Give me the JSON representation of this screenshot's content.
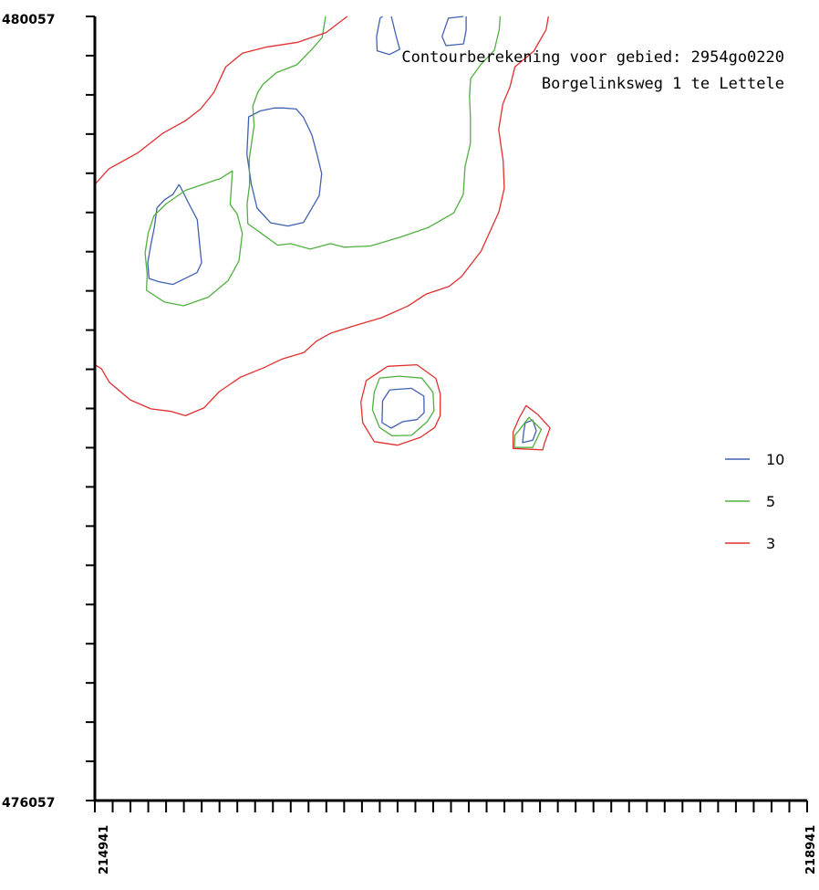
{
  "chart_data": {
    "type": "contour",
    "title": "",
    "subtitle": [
      "Contourberekening voor gebied: 2954go0220",
      "Borgelinksweg 1 te Lettele"
    ],
    "xlabel": "",
    "ylabel": "",
    "xlim": [
      214941,
      218941
    ],
    "ylim": [
      476057,
      480057
    ],
    "x_tick_labels": [
      "214941",
      "218941"
    ],
    "y_tick_labels": [
      "480057",
      "476057"
    ],
    "grid": false,
    "legend_position": "right",
    "levels": [
      {
        "name": "10",
        "color": "#4060b0"
      },
      {
        "name": "5",
        "color": "#50b040"
      },
      {
        "name": "3",
        "color": "#e03030"
      }
    ],
    "series": [
      {
        "name": "10",
        "color": "#4060b0",
        "lines": [
          [
            [
              217011,
              480057
            ],
            [
              216926,
              480048
            ],
            [
              216891,
              479954
            ],
            [
              216913,
              479908
            ],
            [
              217011,
              479917
            ],
            [
              217026,
              479987
            ],
            [
              217026,
              480057
            ]
          ],
          [
            [
              216557,
              480057
            ],
            [
              216543,
              480048
            ],
            [
              216523,
              479955
            ],
            [
              216526,
              479882
            ],
            [
              216596,
              479863
            ],
            [
              216653,
              479890
            ],
            [
              216633,
              479955
            ],
            [
              216606,
              480057
            ]
          ],
          [
            [
              216000,
              479590
            ],
            [
              216072,
              479585
            ],
            [
              216113,
              479542
            ],
            [
              216160,
              479452
            ],
            [
              216189,
              479352
            ],
            [
              216215,
              479255
            ],
            [
              216201,
              479143
            ],
            [
              216113,
              479006
            ],
            [
              216025,
              478988
            ],
            [
              215928,
              479004
            ],
            [
              215852,
              479079
            ],
            [
              215820,
              479200
            ],
            [
              215795,
              479355
            ],
            [
              215805,
              479545
            ],
            [
              215870,
              479575
            ],
            [
              215950,
              479590
            ],
            [
              216000,
              479590
            ]
          ],
          [
            [
              215414,
              479200
            ],
            [
              215380,
              479150
            ],
            [
              215330,
              479120
            ],
            [
              215290,
              479080
            ],
            [
              215275,
              478980
            ],
            [
              215255,
              478890
            ],
            [
              215238,
              478800
            ],
            [
              215245,
              478720
            ],
            [
              215300,
              478704
            ],
            [
              215380,
              478690
            ],
            [
              215514,
              478750
            ],
            [
              215540,
              478800
            ],
            [
              215529,
              478900
            ],
            [
              215516,
              479020
            ],
            [
              215470,
              479100
            ],
            [
              215414,
              479200
            ]
          ],
          [
            [
              216597,
              478152
            ],
            [
              216720,
              478160
            ],
            [
              216789,
              478120
            ],
            [
              216790,
              478035
            ],
            [
              216750,
              478000
            ],
            [
              216670,
              477990
            ],
            [
              216605,
              477957
            ],
            [
              216554,
              477985
            ],
            [
              216557,
              478096
            ],
            [
              216597,
              478152
            ]
          ],
          [
            [
              217358,
              477983
            ],
            [
              217400,
              477998
            ],
            [
              217420,
              477944
            ],
            [
              217400,
              477895
            ],
            [
              217343,
              477883
            ],
            [
              217349,
              477937
            ],
            [
              217358,
              477983
            ]
          ]
        ]
      },
      {
        "name": "5",
        "color": "#50b040",
        "lines": [
          [
            [
              217217,
              480057
            ],
            [
              217212,
              479990
            ],
            [
              217185,
              479885
            ],
            [
              217107,
              479810
            ],
            [
              217051,
              479740
            ],
            [
              217045,
              479650
            ],
            [
              217050,
              479540
            ],
            [
              217050,
              479410
            ],
            [
              217020,
              479290
            ],
            [
              217010,
              479150
            ],
            [
              216957,
              479055
            ],
            [
              216813,
              478980
            ],
            [
              216657,
              478931
            ],
            [
              216488,
              478886
            ],
            [
              216340,
              478880
            ],
            [
              216264,
              478898
            ],
            [
              216150,
              478870
            ],
            [
              216040,
              478898
            ],
            [
              215968,
              478890
            ],
            [
              215869,
              478955
            ],
            [
              215800,
              479000
            ],
            [
              215796,
              479100
            ],
            [
              215810,
              479200
            ],
            [
              215808,
              479330
            ],
            [
              215835,
              479500
            ],
            [
              215828,
              479600
            ],
            [
              215856,
              479670
            ],
            [
              215885,
              479710
            ],
            [
              215960,
              479770
            ],
            [
              216075,
              479810
            ],
            [
              216160,
              479890
            ],
            [
              216218,
              479950
            ],
            [
              216237,
              480057
            ]
          ],
          [
            [
              215714,
              479270
            ],
            [
              215650,
              479232
            ],
            [
              215557,
              479203
            ],
            [
              215450,
              479170
            ],
            [
              215340,
              479100
            ],
            [
              215273,
              479040
            ],
            [
              215240,
              478950
            ],
            [
              215223,
              478850
            ],
            [
              215235,
              478740
            ],
            [
              215231,
              478660
            ],
            [
              215330,
              478601
            ],
            [
              215440,
              478581
            ],
            [
              215578,
              478625
            ],
            [
              215690,
              478710
            ],
            [
              215750,
              478810
            ],
            [
              215769,
              478950
            ],
            [
              215740,
              479050
            ],
            [
              215701,
              479097
            ],
            [
              215714,
              479270
            ]
          ],
          [
            [
              216540,
              478212
            ],
            [
              216650,
              478222
            ],
            [
              216777,
              478212
            ],
            [
              216840,
              478140
            ],
            [
              216845,
              478045
            ],
            [
              216808,
              477990
            ],
            [
              216720,
              477920
            ],
            [
              216610,
              477918
            ],
            [
              216540,
              477960
            ],
            [
              216500,
              478050
            ],
            [
              216510,
              478140
            ],
            [
              216540,
              478212
            ]
          ],
          [
            [
              217300,
              477921
            ],
            [
              217320,
              477942
            ],
            [
              217379,
              478012
            ],
            [
              217448,
              477950
            ],
            [
              217400,
              477858
            ],
            [
              217297,
              477858
            ],
            [
              217300,
              477921
            ]
          ]
        ]
      },
      {
        "name": "3",
        "color": "#e03030",
        "lines": [
          [
            [
              216358,
              480057
            ],
            [
              216240,
              479975
            ],
            [
              216081,
              479925
            ],
            [
              215900,
              479900
            ],
            [
              215770,
              479870
            ],
            [
              215676,
              479800
            ],
            [
              215610,
              479670
            ],
            [
              215535,
              479585
            ],
            [
              215450,
              479525
            ],
            [
              215321,
              479460
            ],
            [
              215180,
              479360
            ],
            [
              215020,
              479280
            ],
            [
              214941,
              479200
            ]
          ],
          [
            [
              217488,
              480057
            ],
            [
              217475,
              479990
            ],
            [
              217406,
              479880
            ],
            [
              217300,
              479800
            ],
            [
              217273,
              479700
            ],
            [
              217232,
              479610
            ],
            [
              217209,
              479480
            ],
            [
              217234,
              479320
            ],
            [
              217240,
              479180
            ],
            [
              217210,
              479060
            ],
            [
              217110,
              478860
            ],
            [
              217000,
              478730
            ],
            [
              216930,
              478680
            ],
            [
              216800,
              478640
            ],
            [
              216700,
              478580
            ],
            [
              216550,
              478520
            ],
            [
              216400,
              478480
            ],
            [
              216262,
              478440
            ],
            [
              216185,
              478400
            ],
            [
              216116,
              478343
            ],
            [
              215994,
              478310
            ],
            [
              215890,
              478265
            ],
            [
              215760,
              478217
            ],
            [
              215640,
              478143
            ],
            [
              215553,
              478060
            ],
            [
              215450,
              478020
            ],
            [
              215370,
              478042
            ],
            [
              215255,
              478055
            ],
            [
              215140,
              478101
            ],
            [
              215023,
              478190
            ],
            [
              214978,
              478260
            ],
            [
              214941,
              478280
            ]
          ],
          [
            [
              216585,
              478272
            ],
            [
              216750,
              478280
            ],
            [
              216856,
              478210
            ],
            [
              216881,
              478130
            ],
            [
              216880,
              478020
            ],
            [
              216850,
              477960
            ],
            [
              216769,
              477910
            ],
            [
              216640,
              477870
            ],
            [
              216510,
              477888
            ],
            [
              216445,
              477985
            ],
            [
              216435,
              478090
            ],
            [
              216465,
              478200
            ],
            [
              216585,
              478272
            ]
          ],
          [
            [
              217290,
              477937
            ],
            [
              217325,
              478011
            ],
            [
              217363,
              478072
            ],
            [
              217430,
              478025
            ],
            [
              217497,
              477958
            ],
            [
              217466,
              477880
            ],
            [
              217456,
              477846
            ],
            [
              217290,
              477853
            ],
            [
              217290,
              477937
            ]
          ]
        ]
      }
    ]
  }
}
